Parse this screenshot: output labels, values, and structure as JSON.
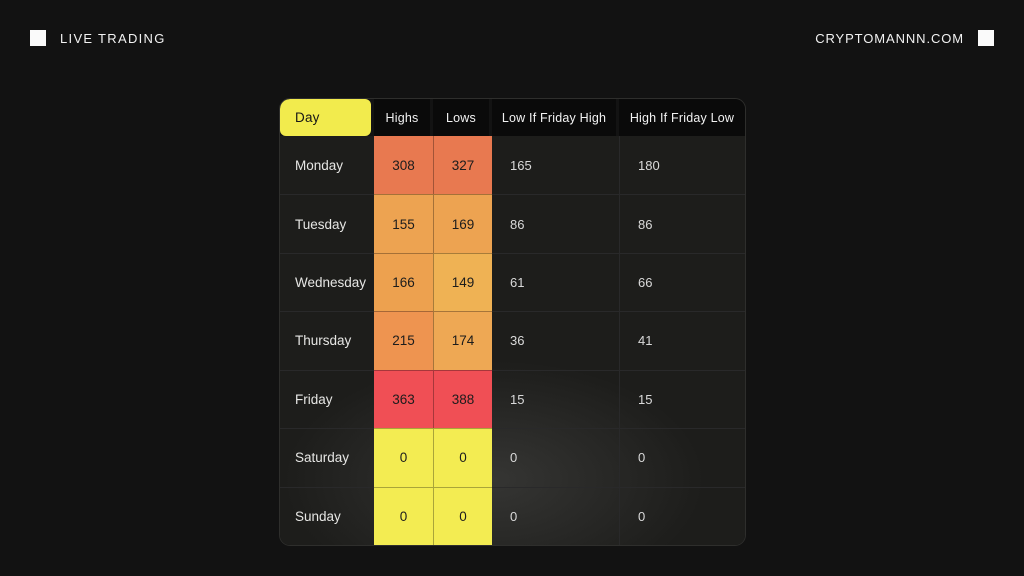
{
  "header": {
    "left_label": "LIVE TRADING",
    "right_label": "CRYPTOMANNN.COM"
  },
  "colors": {
    "page_bg": "#121212",
    "table_body_bg": "#1D1D1B",
    "header_cell_bg": "#0A0A0A",
    "day_header_bg": "#F2EB4D",
    "friday_red": "#F04F55",
    "weekend_yellow": "#F3EC52"
  },
  "chart_data": {
    "type": "table",
    "title": "",
    "columns": [
      "Day",
      "Highs",
      "Lows",
      "Low If Friday High",
      "High If Friday Low"
    ],
    "rows": [
      {
        "day": "Monday",
        "highs": "308",
        "lows": "327",
        "low_if_friday_high": "165",
        "high_if_friday_low": "180",
        "highs_bg": "#E87950",
        "lows_bg": "#E87950"
      },
      {
        "day": "Tuesday",
        "highs": "155",
        "lows": "169",
        "low_if_friday_high": "86",
        "high_if_friday_low": "86",
        "highs_bg": "#EDA351",
        "lows_bg": "#EDA351"
      },
      {
        "day": "Wednesday",
        "highs": "166",
        "lows": "149",
        "low_if_friday_high": "61",
        "high_if_friday_low": "66",
        "highs_bg": "#EDA14F",
        "lows_bg": "#EFB254"
      },
      {
        "day": "Thursday",
        "highs": "215",
        "lows": "174",
        "low_if_friday_high": "36",
        "high_if_friday_low": "41",
        "highs_bg": "#EE9450",
        "lows_bg": "#EEA854"
      },
      {
        "day": "Friday",
        "highs": "363",
        "lows": "388",
        "low_if_friday_high": "15",
        "high_if_friday_low": "15",
        "highs_bg": "#F04F55",
        "lows_bg": "#F04F55"
      },
      {
        "day": "Saturday",
        "highs": "0",
        "lows": "0",
        "low_if_friday_high": "0",
        "high_if_friday_low": "0",
        "highs_bg": "#F3EC52",
        "lows_bg": "#F3EC52"
      },
      {
        "day": "Sunday",
        "highs": "0",
        "lows": "0",
        "low_if_friday_high": "0",
        "high_if_friday_low": "0",
        "highs_bg": "#F3EC52",
        "lows_bg": "#F3EC52"
      }
    ]
  }
}
